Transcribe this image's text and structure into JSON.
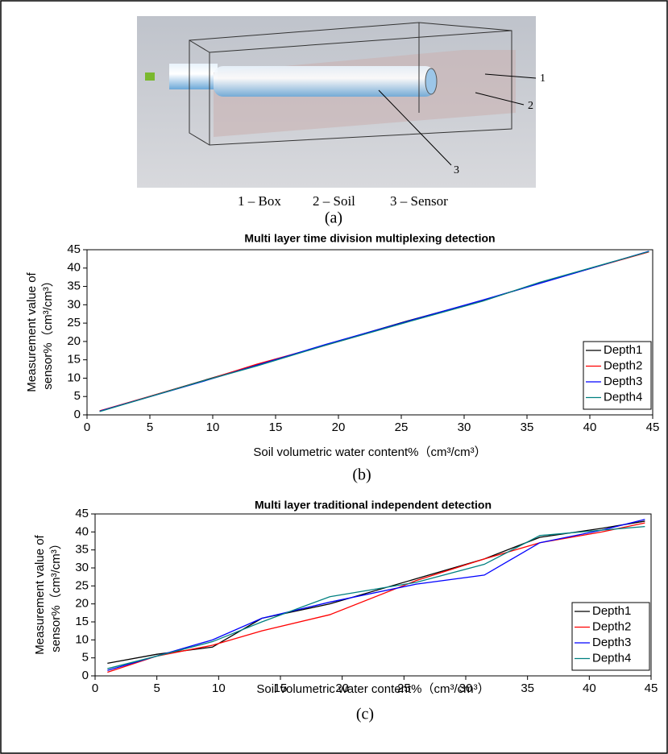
{
  "figure": {
    "callouts": [
      "1",
      "2",
      "3"
    ],
    "legend": [
      "1 – Box",
      "2 – Soil",
      "3 – Sensor"
    ],
    "panel": "(a)"
  },
  "chart_data": [
    {
      "type": "line",
      "title": "Multi layer time division multiplexing detection",
      "xlabel": "Soil volumetric water content%（cm³/cm³）",
      "ylabel": [
        "Measurement value of",
        "sensor%（cm³/cm³）"
      ],
      "panel": "(b)",
      "x": [
        1,
        9.5,
        13.5,
        19,
        25.5,
        31.5,
        36,
        44.7
      ],
      "series": [
        {
          "name": "Depth1",
          "color": "#000000",
          "values": [
            1,
            9.6,
            13.6,
            19.1,
            25.6,
            31.2,
            35.9,
            44.5
          ]
        },
        {
          "name": "Depth2",
          "color": "#ff0000",
          "values": [
            1.1,
            9.5,
            13.8,
            19.0,
            25.4,
            31.1,
            36.0,
            44.4
          ]
        },
        {
          "name": "Depth3",
          "color": "#0000ff",
          "values": [
            1.0,
            9.4,
            13.5,
            19.2,
            25.5,
            31.3,
            35.8,
            44.6
          ]
        },
        {
          "name": "Depth4",
          "color": "#008080",
          "values": [
            0.9,
            9.5,
            13.3,
            19.0,
            25.3,
            31.0,
            36.1,
            44.5
          ]
        }
      ],
      "xlim": [
        0,
        45
      ],
      "ylim": [
        0,
        45
      ],
      "xticks": [
        0,
        5,
        10,
        15,
        20,
        25,
        30,
        35,
        40,
        45
      ],
      "yticks": [
        0,
        5,
        10,
        15,
        20,
        25,
        30,
        35,
        40,
        45
      ],
      "legend": "lower right"
    },
    {
      "type": "line",
      "title": "Multi layer traditional independent detection",
      "xlabel": "Soil volumetric water content%（cm³/cm³）",
      "ylabel": [
        "Measurement value of",
        "sensor%（cm³/cm³）"
      ],
      "panel": "(c)",
      "x": [
        1,
        5,
        9.5,
        13.5,
        19,
        26,
        31.5,
        36,
        41,
        44.5
      ],
      "series": [
        {
          "name": "Depth1",
          "color": "#000000",
          "values": [
            3.5,
            6,
            8,
            16,
            20,
            27,
            32.5,
            38.5,
            41,
            43
          ]
        },
        {
          "name": "Depth2",
          "color": "#ff0000",
          "values": [
            1,
            5.5,
            8.5,
            12.5,
            17,
            26.5,
            32.5,
            37,
            40,
            42.5
          ]
        },
        {
          "name": "Depth3",
          "color": "#0000ff",
          "values": [
            1.5,
            5.5,
            10,
            16,
            20.5,
            25.5,
            28,
            37,
            40.5,
            43.5
          ]
        },
        {
          "name": "Depth4",
          "color": "#008080",
          "values": [
            2,
            5.5,
            9.5,
            15,
            22,
            26,
            31,
            39,
            40.5,
            41.5
          ]
        }
      ],
      "xlim": [
        0,
        45
      ],
      "ylim": [
        0,
        45
      ],
      "xticks": [
        0,
        5,
        10,
        15,
        20,
        25,
        30,
        35,
        40,
        45
      ],
      "yticks": [
        0,
        5,
        10,
        15,
        20,
        25,
        30,
        35,
        40,
        45
      ],
      "legend": "lower right"
    }
  ]
}
